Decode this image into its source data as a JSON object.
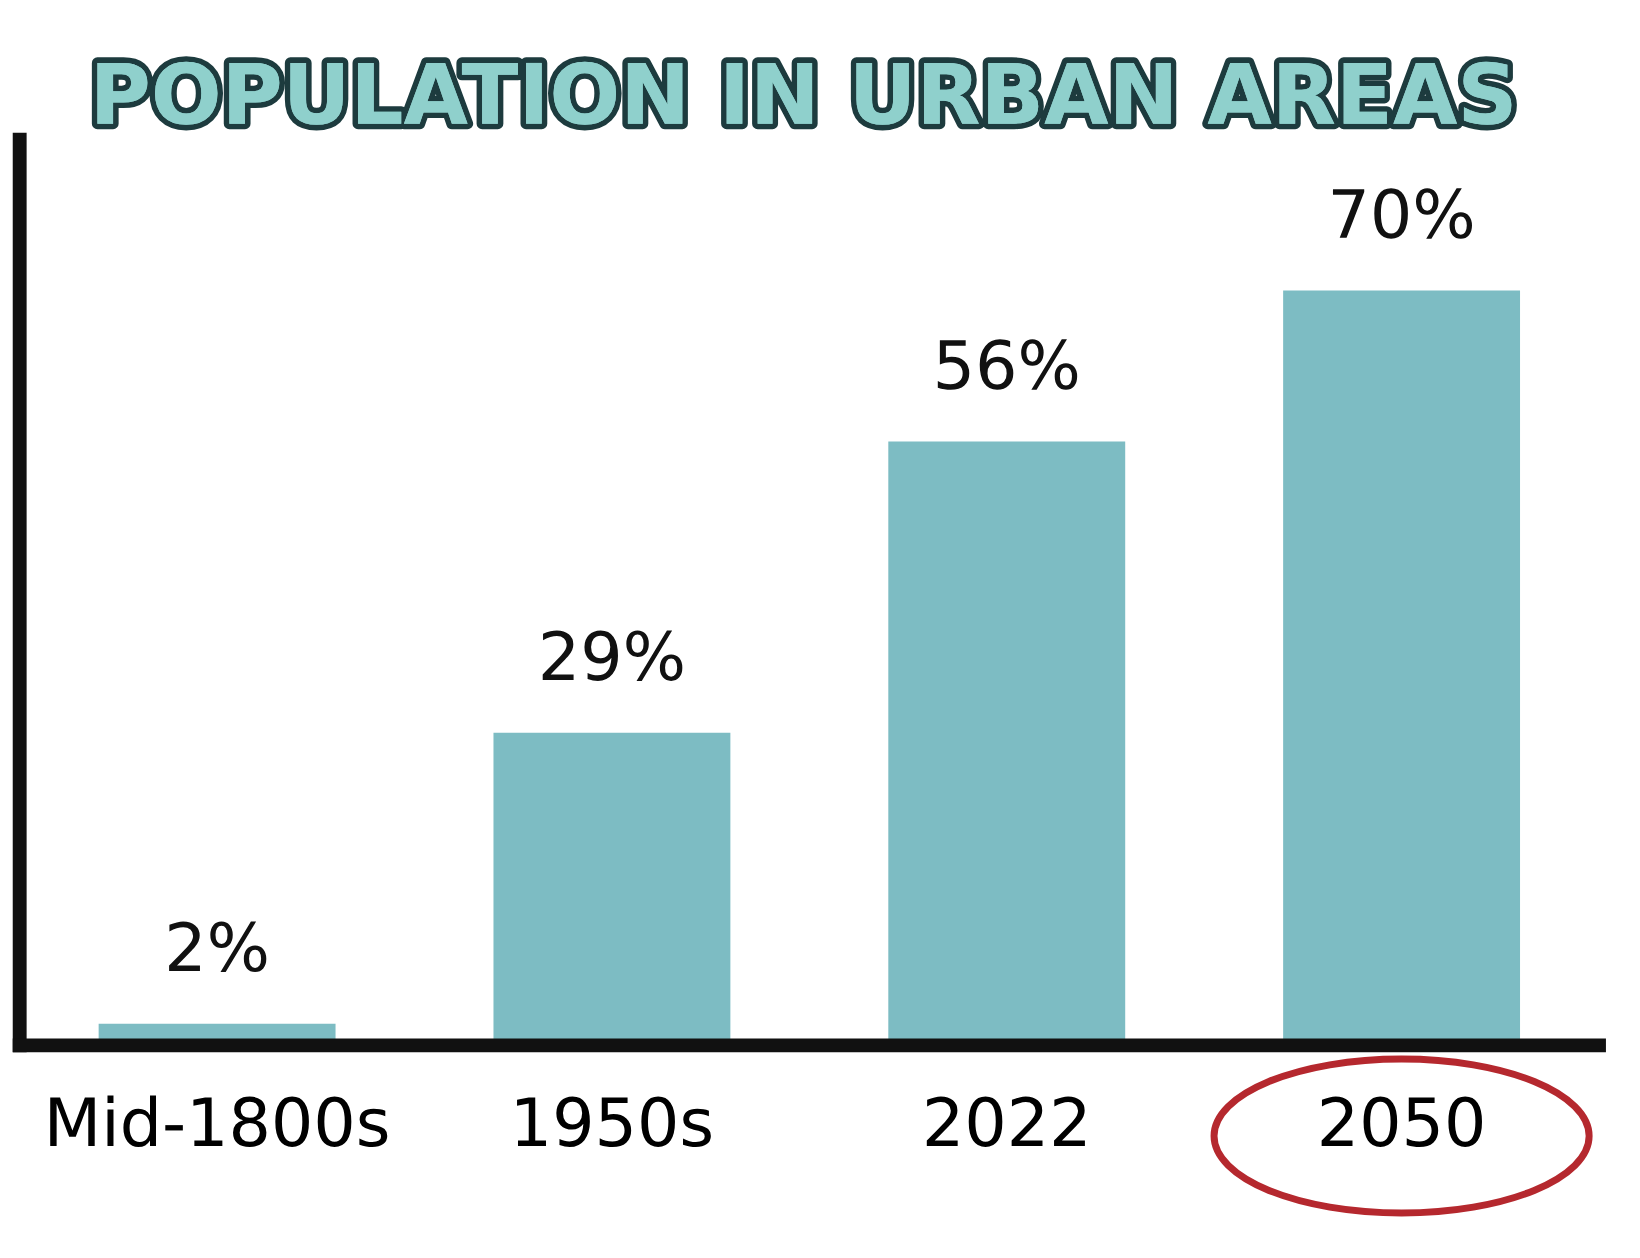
{
  "chart_data": {
    "type": "bar",
    "title": "POPULATION IN URBAN AREAS",
    "categories": [
      "Mid-1800s",
      "1950s",
      "2022",
      "2050"
    ],
    "values": [
      2,
      29,
      56,
      70
    ],
    "value_labels": [
      "2%",
      "29%",
      "56%",
      "70%"
    ],
    "color": "#7dbcc3",
    "grid": false,
    "legend": false
  }
}
